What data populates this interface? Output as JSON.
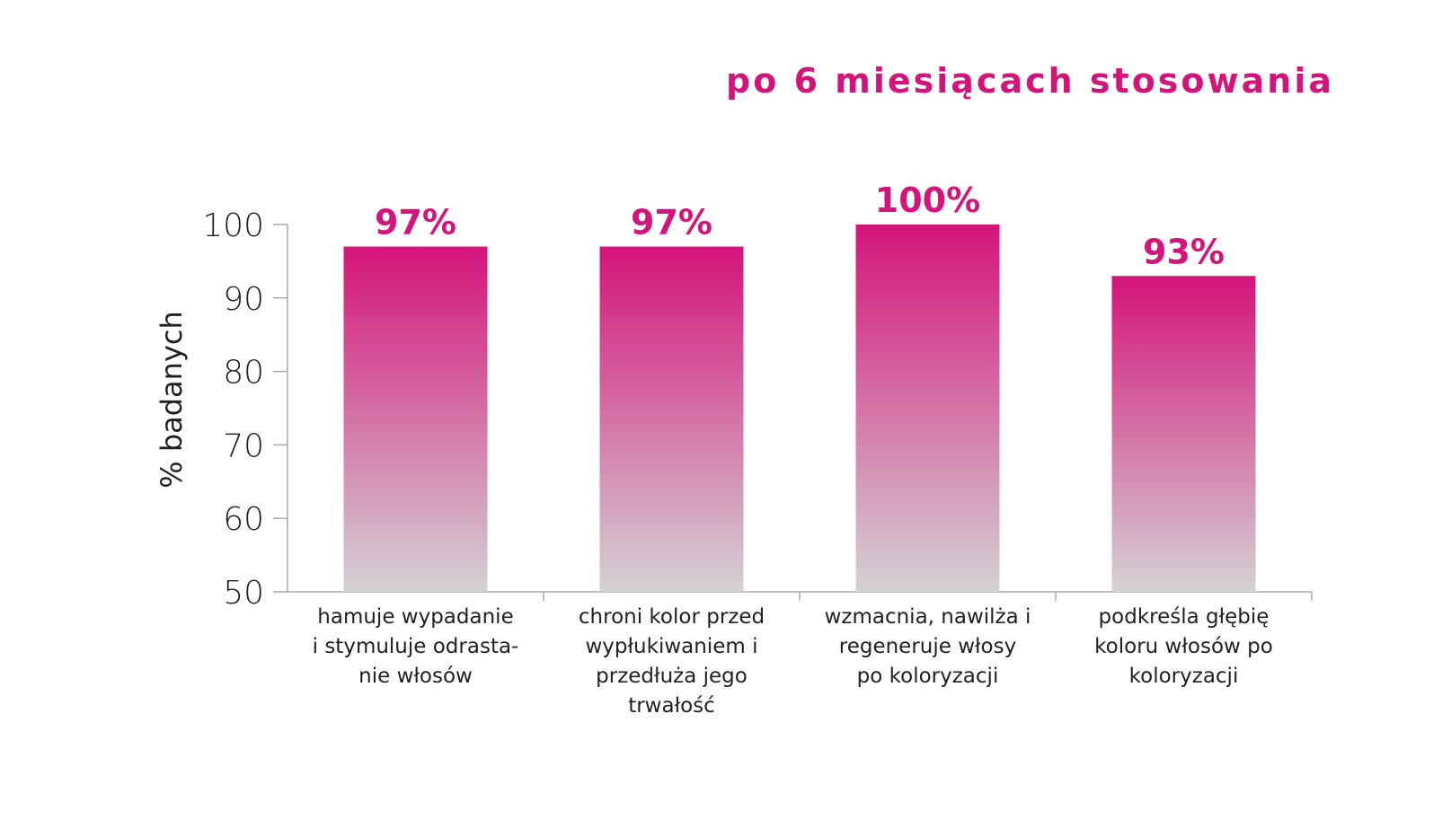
{
  "chart_data": {
    "type": "bar",
    "title": "po 6 miesiącach stosowania",
    "ylabel": "% badanych",
    "xlabel": "",
    "ylim": [
      50,
      100
    ],
    "yticks": [
      "50",
      "60",
      "70",
      "80",
      "90",
      "100"
    ],
    "grid": false,
    "categories": [
      "hamuje wypadanie i stymuluje odrasta- nie włosów",
      "chroni kolor przed wypłukiwaniem i przedłuża jego trwałość",
      "wzmacnia, nawilża i regeneruje włosy po koloryzacji",
      "podkreśla głębię koloru włosów po koloryzacji"
    ],
    "category_lines": [
      [
        "hamuje wypadanie",
        "i stymuluje odrasta-",
        "nie włosów"
      ],
      [
        "chroni kolor przed",
        "wypłukiwaniem i",
        "przedłuża jego",
        "trwałość"
      ],
      [
        "wzmacnia, nawilża i",
        "regeneruje włosy",
        "po koloryzacji"
      ],
      [
        "podkreśla głębię",
        "koloru włosów po",
        "koloryzacji"
      ]
    ],
    "values": [
      97,
      97,
      100,
      93
    ],
    "value_labels": [
      "97%",
      "97%",
      "100%",
      "93%"
    ],
    "colors": {
      "bar_top": "#d4147a",
      "bar_bottom": "#d4d2d3",
      "axis": "#a7a9ac",
      "text": "#231f20",
      "accent": "#d4147a"
    }
  }
}
